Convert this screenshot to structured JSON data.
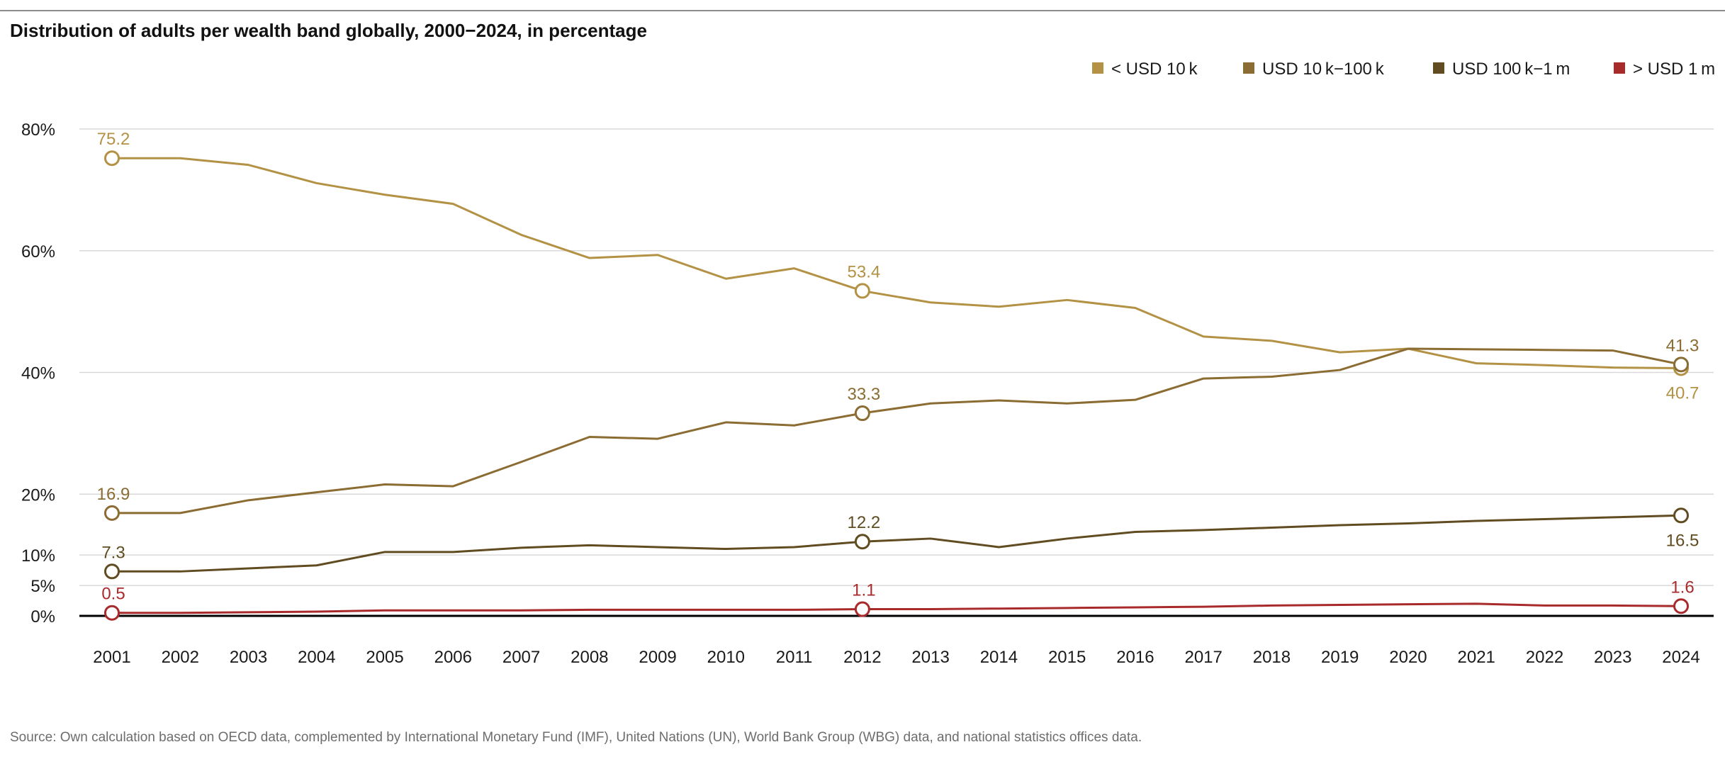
{
  "chart_data": {
    "type": "line",
    "title": "Distribution of adults per wealth band globally, 2000−2024, in percentage",
    "source": "Source: Own calculation based on OECD data, complemented by International Monetary Fund (IMF), United Nations (UN), World Bank Group (WBG) data, and national statistics offices data.",
    "x": [
      "2001",
      "2002",
      "2003",
      "2004",
      "2005",
      "2006",
      "2007",
      "2008",
      "2009",
      "2010",
      "2011",
      "2012",
      "2013",
      "2014",
      "2015",
      "2016",
      "2017",
      "2018",
      "2019",
      "2020",
      "2021",
      "2022",
      "2023",
      "2024"
    ],
    "ylim": [
      0,
      80
    ],
    "yticks": [
      {
        "value": 0,
        "label": "0%"
      },
      {
        "value": 5,
        "label": "5%"
      },
      {
        "value": 10,
        "label": "10%"
      },
      {
        "value": 20,
        "label": "20%"
      },
      {
        "value": 40,
        "label": "40%"
      },
      {
        "value": 60,
        "label": "60%"
      },
      {
        "value": 80,
        "label": "80%"
      }
    ],
    "grid": true,
    "legend_position": "top-right",
    "series": [
      {
        "name": "< USD 10 k",
        "color": "#b39245",
        "values": [
          75.2,
          75.2,
          74.1,
          71.1,
          69.2,
          67.7,
          62.6,
          58.8,
          59.3,
          55.4,
          57.1,
          53.4,
          51.5,
          50.8,
          51.9,
          50.6,
          45.9,
          45.2,
          43.3,
          43.9,
          41.5,
          41.2,
          40.8,
          40.7
        ],
        "labels": [
          {
            "index": 0,
            "text": "75.2",
            "pos": "above"
          },
          {
            "index": 11,
            "text": "53.4",
            "pos": "above"
          },
          {
            "index": 23,
            "text": "40.7",
            "pos": "below"
          }
        ]
      },
      {
        "name": "USD 10 k−100 k",
        "color": "#8b6c32",
        "values": [
          16.9,
          16.9,
          19.0,
          20.3,
          21.6,
          21.3,
          25.3,
          29.4,
          29.1,
          31.8,
          31.3,
          33.3,
          34.9,
          35.4,
          34.9,
          35.5,
          39.0,
          39.3,
          40.4,
          43.9,
          43.8,
          43.7,
          43.6,
          41.3
        ],
        "labels": [
          {
            "index": 0,
            "text": "16.9",
            "pos": "above"
          },
          {
            "index": 11,
            "text": "33.3",
            "pos": "above"
          },
          {
            "index": 23,
            "text": "41.3",
            "pos": "above"
          }
        ]
      },
      {
        "name": "USD 100 k−1 m",
        "color": "#614c22",
        "values": [
          7.3,
          7.3,
          7.8,
          8.3,
          10.5,
          10.5,
          11.2,
          11.6,
          11.3,
          11.0,
          11.3,
          12.2,
          12.7,
          11.3,
          12.7,
          13.8,
          14.1,
          14.5,
          14.9,
          15.2,
          15.6,
          15.9,
          16.2,
          16.5
        ],
        "labels": [
          {
            "index": 0,
            "text": "7.3",
            "pos": "above"
          },
          {
            "index": 11,
            "text": "12.2",
            "pos": "above"
          },
          {
            "index": 23,
            "text": "16.5",
            "pos": "below"
          }
        ]
      },
      {
        "name": "> USD 1 m",
        "color": "#a92a2b",
        "values": [
          0.5,
          0.5,
          0.6,
          0.7,
          0.9,
          0.9,
          0.9,
          1.0,
          1.0,
          1.0,
          1.0,
          1.1,
          1.1,
          1.2,
          1.3,
          1.4,
          1.5,
          1.7,
          1.8,
          1.9,
          2.0,
          1.7,
          1.7,
          1.6
        ],
        "labels": [
          {
            "index": 0,
            "text": "0.5",
            "pos": "above"
          },
          {
            "index": 11,
            "text": "1.1",
            "pos": "above"
          },
          {
            "index": 23,
            "text": "1.6",
            "pos": "above"
          }
        ]
      }
    ]
  }
}
